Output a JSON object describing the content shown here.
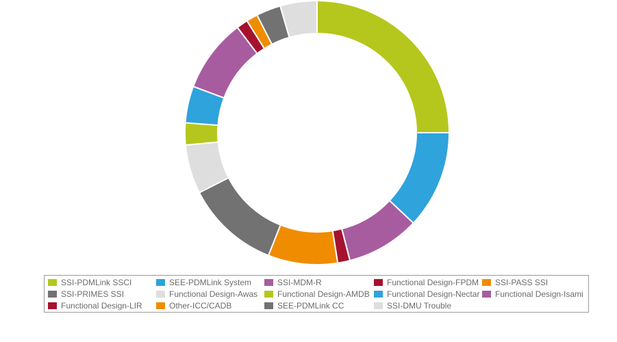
{
  "chart_data": {
    "type": "pie",
    "donut": true,
    "legend_position": "bottom",
    "slices": [
      {
        "label": "SSI-PDMLink SSCI",
        "value": 25.0,
        "color": "#b5c71c"
      },
      {
        "label": "SEE-PDMLink System",
        "value": 12.0,
        "color": "#2ea3dc"
      },
      {
        "label": "SSI-MDM-R",
        "value": 9.0,
        "color": "#a85ca0"
      },
      {
        "label": "Functional Design-FPDM",
        "value": 1.5,
        "color": "#a5122f"
      },
      {
        "label": "SSI-PASS SSI",
        "value": 8.5,
        "color": "#f08c00"
      },
      {
        "label": "SSI-PRIMES SSI",
        "value": 11.5,
        "color": "#727272"
      },
      {
        "label": "Functional Design-Awas",
        "value": 6.0,
        "color": "#dedede"
      },
      {
        "label": "Functional Design-AMDB",
        "value": 2.7,
        "color": "#b5c71c"
      },
      {
        "label": "Functional Design-Nectar",
        "value": 4.5,
        "color": "#2ea3dc"
      },
      {
        "label": "Functional Design-Isami",
        "value": 9.0,
        "color": "#a85ca0"
      },
      {
        "label": "Functional Design-LIR",
        "value": 1.4,
        "color": "#a5122f"
      },
      {
        "label": "Other-ICC/CADB",
        "value": 1.4,
        "color": "#f08c00"
      },
      {
        "label": "SEE-PDMLink CC",
        "value": 3.0,
        "color": "#727272"
      },
      {
        "label": "SSI-DMU Trouble",
        "value": 4.5,
        "color": "#dedede"
      }
    ]
  }
}
